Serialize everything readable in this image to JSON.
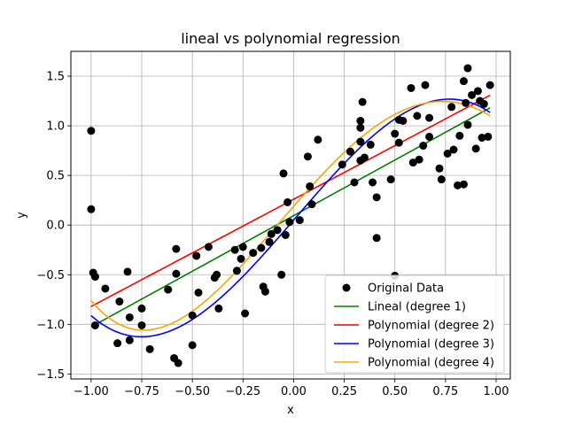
{
  "chart_data": {
    "type": "scatter",
    "title": "lineal vs polynomial regression",
    "xlabel": "x",
    "ylabel": "y",
    "xlim": [
      -1.1,
      1.07
    ],
    "ylim": [
      -1.55,
      1.75
    ],
    "xticks": [
      -1.0,
      -0.75,
      -0.5,
      -0.25,
      0.0,
      0.25,
      0.5,
      0.75,
      1.0
    ],
    "xtick_labels": [
      "−1.00",
      "−0.75",
      "−0.50",
      "−0.25",
      "0.00",
      "0.25",
      "0.50",
      "0.75",
      "1.00"
    ],
    "yticks": [
      -1.5,
      -1.0,
      -0.5,
      0.0,
      0.5,
      1.0,
      1.5
    ],
    "ytick_labels": [
      "−1.5",
      "−1.0",
      "−0.5",
      "0.0",
      "0.5",
      "1.0",
      "1.5"
    ],
    "grid": true,
    "legend_position": "bottom-right",
    "series": [
      {
        "name": "Original Data",
        "kind": "scatter",
        "color": "#000000",
        "points": [
          [
            -1.0,
            0.95
          ],
          [
            -1.0,
            0.16
          ],
          [
            -0.99,
            -0.48
          ],
          [
            -0.98,
            -0.52
          ],
          [
            -0.98,
            -1.01
          ],
          [
            -0.93,
            -0.64
          ],
          [
            -0.87,
            -1.19
          ],
          [
            -0.86,
            -0.77
          ],
          [
            -0.82,
            -0.47
          ],
          [
            -0.81,
            -0.93
          ],
          [
            -0.81,
            -1.16
          ],
          [
            -0.75,
            -0.84
          ],
          [
            -0.75,
            -1.01
          ],
          [
            -0.71,
            -1.25
          ],
          [
            -0.62,
            -0.65
          ],
          [
            -0.59,
            -1.34
          ],
          [
            -0.58,
            -0.24
          ],
          [
            -0.58,
            -0.49
          ],
          [
            -0.57,
            -1.39
          ],
          [
            -0.5,
            -0.91
          ],
          [
            -0.5,
            -1.21
          ],
          [
            -0.48,
            -0.31
          ],
          [
            -0.47,
            -0.68
          ],
          [
            -0.42,
            -0.22
          ],
          [
            -0.39,
            -0.53
          ],
          [
            -0.38,
            -0.5
          ],
          [
            -0.37,
            -0.84
          ],
          [
            -0.29,
            -0.25
          ],
          [
            -0.28,
            -0.46
          ],
          [
            -0.26,
            -0.34
          ],
          [
            -0.25,
            -0.22
          ],
          [
            -0.24,
            -0.89
          ],
          [
            -0.2,
            -0.28
          ],
          [
            -0.16,
            -0.23
          ],
          [
            -0.15,
            -0.62
          ],
          [
            -0.14,
            -0.67
          ],
          [
            -0.12,
            -0.17
          ],
          [
            -0.11,
            -0.09
          ],
          [
            -0.08,
            -0.05
          ],
          [
            -0.06,
            -0.5
          ],
          [
            -0.05,
            0.52
          ],
          [
            -0.04,
            -0.1
          ],
          [
            -0.03,
            0.23
          ],
          [
            -0.02,
            0.03
          ],
          [
            0.03,
            0.05
          ],
          [
            0.07,
            0.69
          ],
          [
            0.08,
            0.39
          ],
          [
            0.09,
            0.21
          ],
          [
            0.12,
            0.86
          ],
          [
            0.24,
            0.61
          ],
          [
            0.28,
            0.74
          ],
          [
            0.3,
            0.43
          ],
          [
            0.33,
            0.65
          ],
          [
            0.33,
            0.84
          ],
          [
            0.33,
            0.98
          ],
          [
            0.33,
            1.05
          ],
          [
            0.34,
            1.24
          ],
          [
            0.35,
            0.68
          ],
          [
            0.38,
            0.81
          ],
          [
            0.39,
            0.43
          ],
          [
            0.41,
            0.28
          ],
          [
            0.41,
            -0.13
          ],
          [
            0.48,
            0.46
          ],
          [
            0.5,
            0.92
          ],
          [
            0.5,
            -0.51
          ],
          [
            0.52,
            0.83
          ],
          [
            0.52,
            1.06
          ],
          [
            0.54,
            1.05
          ],
          [
            0.58,
            1.38
          ],
          [
            0.59,
            0.63
          ],
          [
            0.61,
            1.1
          ],
          [
            0.62,
            0.66
          ],
          [
            0.64,
            0.8
          ],
          [
            0.65,
            1.41
          ],
          [
            0.67,
            0.89
          ],
          [
            0.67,
            1.08
          ],
          [
            0.72,
            0.57
          ],
          [
            0.73,
            0.46
          ],
          [
            0.76,
            0.72
          ],
          [
            0.78,
            1.19
          ],
          [
            0.79,
            0.76
          ],
          [
            0.81,
            0.4
          ],
          [
            0.82,
            0.9
          ],
          [
            0.84,
            1.45
          ],
          [
            0.84,
            0.41
          ],
          [
            0.85,
            1.23
          ],
          [
            0.86,
            1.58
          ],
          [
            0.86,
            1.01
          ],
          [
            0.88,
            1.31
          ],
          [
            0.9,
            0.77
          ],
          [
            0.91,
            1.35
          ],
          [
            0.92,
            1.25
          ],
          [
            0.93,
            0.88
          ],
          [
            0.94,
            1.22
          ],
          [
            0.96,
            0.89
          ],
          [
            0.97,
            1.41
          ]
        ]
      },
      {
        "name": "Lineal (degree 1)",
        "kind": "line",
        "color": "#008000",
        "coeffs": [
          0.095,
          1.12
        ]
      },
      {
        "name": "Polynomial (degree 2)",
        "kind": "line",
        "color": "#ff0000",
        "coeffs": [
          0.26,
          1.08,
          0.0
        ]
      },
      {
        "name": "Polynomial (degree 3)",
        "kind": "line",
        "color": "#0000ff",
        "coeffs": [
          0.05,
          2.36,
          0.038,
          -1.36
        ]
      },
      {
        "name": "Polynomial (degree 4)",
        "kind": "line",
        "color": "#ffa500",
        "coeffs": [
          0.19,
          2.34,
          -0.34,
          -1.43,
          0.3
        ]
      }
    ]
  }
}
